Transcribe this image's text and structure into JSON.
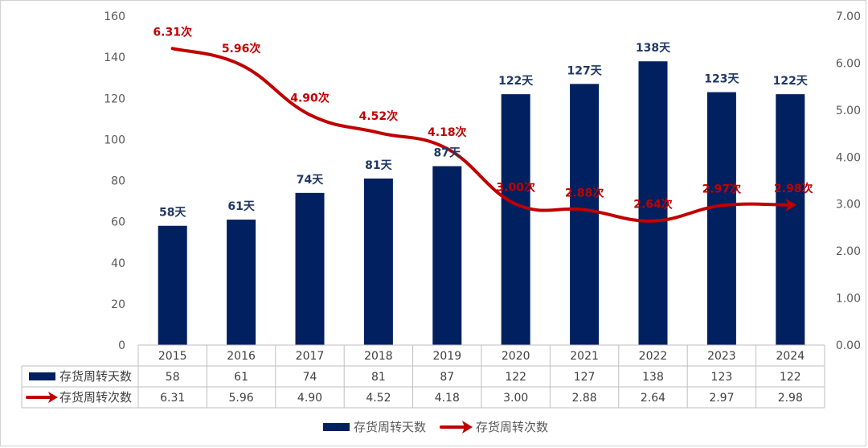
{
  "chart_data": {
    "type": "bar",
    "categories": [
      "2015",
      "2016",
      "2017",
      "2018",
      "2019",
      "2020",
      "2021",
      "2022",
      "2023",
      "2024"
    ],
    "series": [
      {
        "name": "存货周转天数",
        "chart_type": "bar",
        "axis": "left",
        "color": "#002060",
        "values": [
          58,
          61,
          74,
          81,
          87,
          122,
          127,
          138,
          123,
          122
        ],
        "data_labels": [
          "58天",
          "61天",
          "74天",
          "81天",
          "87天",
          "122天",
          "127天",
          "138天",
          "123天",
          "122天"
        ]
      },
      {
        "name": "存货周转次数",
        "chart_type": "line",
        "axis": "right",
        "color": "#c00000",
        "values": [
          6.31,
          5.96,
          4.9,
          4.52,
          4.18,
          3.0,
          2.88,
          2.64,
          2.97,
          2.98
        ],
        "data_labels": [
          "6.31次",
          "5.96次",
          "4.90次",
          "4.52次",
          "4.18次",
          "3.00次",
          "2.88次",
          "2.64次",
          "2.97次",
          "2.98次"
        ]
      }
    ],
    "y_left": {
      "range": [
        0,
        160
      ],
      "ticks": [
        "0",
        "20",
        "40",
        "60",
        "80",
        "100",
        "120",
        "140",
        "160"
      ]
    },
    "y_right": {
      "range": [
        0,
        7
      ],
      "ticks": [
        "0.00",
        "1.00",
        "2.00",
        "3.00",
        "4.00",
        "5.00",
        "6.00",
        "7.00"
      ]
    },
    "data_table": {
      "rows": [
        {
          "name": "存货周转天数",
          "cells": [
            "58",
            "61",
            "74",
            "81",
            "87",
            "122",
            "127",
            "138",
            "123",
            "122"
          ]
        },
        {
          "name": "存货周转次数",
          "cells": [
            "6.31",
            "5.96",
            "4.90",
            "4.52",
            "4.18",
            "3.00",
            "2.88",
            "2.64",
            "2.97",
            "2.98"
          ]
        }
      ]
    },
    "legend_position": "bottom",
    "grid": false
  }
}
